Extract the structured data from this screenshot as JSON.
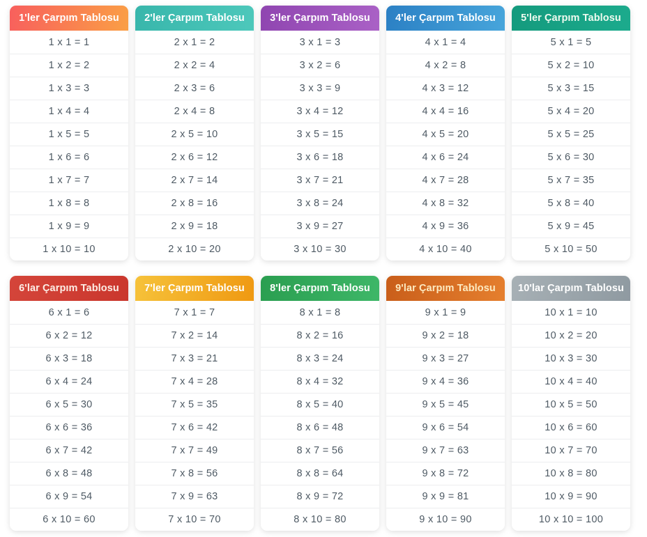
{
  "page": {
    "background": "#ffffff",
    "cell_text_color": "#4e5a64",
    "row_separator_color": "#ecedef"
  },
  "tables": [
    {
      "title": "1'ler Çarpım Tablosu",
      "header_gradient_from": "#f85f5d",
      "header_gradient_to": "#fa9f45",
      "header_text_color": "#ffffff",
      "rows": [
        "1 x 1 = 1",
        "1 x 2 = 2",
        "1 x 3 = 3",
        "1 x 4 = 4",
        "1 x 5 = 5",
        "1 x 6 = 6",
        "1 x 7 = 7",
        "1 x 8 = 8",
        "1 x 9 = 9",
        "1 x 10 = 10"
      ]
    },
    {
      "title": "2'ler Çarpım Tablosu",
      "header_gradient_from": "#38b6ab",
      "header_gradient_to": "#4dc8bb",
      "header_text_color": "#ffffff",
      "rows": [
        "2 x 1 = 2",
        "2 x 2 = 4",
        "2 x 3 = 6",
        "2 x 4 = 8",
        "2 x 5 = 10",
        "2 x 6 = 12",
        "2 x 7 = 14",
        "2 x 8 = 16",
        "2 x 9 = 18",
        "2 x 10 = 20"
      ]
    },
    {
      "title": "3'ler Çarpım Tablosu",
      "header_gradient_from": "#8f45b0",
      "header_gradient_to": "#aa61c6",
      "header_text_color": "#ffffff",
      "rows": [
        "3 x 1 = 3",
        "3 x 2 = 6",
        "3 x 3 = 9",
        "3 x 4 = 12",
        "3 x 5 = 15",
        "3 x 6 = 18",
        "3 x 7 = 21",
        "3 x 8 = 24",
        "3 x 9 = 27",
        "3 x 10 = 30"
      ]
    },
    {
      "title": "4'ler Çarpım Tablosu",
      "header_gradient_from": "#2b80c4",
      "header_gradient_to": "#47a5db",
      "header_text_color": "#ffffff",
      "rows": [
        "4 x 1 = 4",
        "4 x 2 = 8",
        "4 x 3 = 12",
        "4 x 4 = 16",
        "4 x 5 = 20",
        "4 x 6 = 24",
        "4 x 7 = 28",
        "4 x 8 = 32",
        "4 x 9 = 36",
        "4 x 10 = 40"
      ]
    },
    {
      "title": "5'ler Çarpım Tablosu",
      "header_gradient_from": "#149a7d",
      "header_gradient_to": "#1cab8d",
      "header_text_color": "#effbf0",
      "rows": [
        "5 x 1 = 5",
        "5 x 2 = 10",
        "5 x 3 = 15",
        "5 x 4 = 20",
        "5 x 5 = 25",
        "5 x 6 = 30",
        "5 x 7 = 35",
        "5 x 8 = 40",
        "5 x 9 = 45",
        "5 x 10 = 50"
      ]
    },
    {
      "title": "6'lar Çarpım Tablosu",
      "header_gradient_from": "#d4453a",
      "header_gradient_to": "#ca372d",
      "header_text_color": "#fdeee6",
      "rows": [
        "6 x 1 = 6",
        "6 x 2 = 12",
        "6 x 3 = 18",
        "6 x 4 = 24",
        "6 x 5 = 30",
        "6 x 6 = 36",
        "6 x 7 = 42",
        "6 x 8 = 48",
        "6 x 9 = 54",
        "6 x 10 = 60"
      ]
    },
    {
      "title": "7'ler Çarpım Tablosu",
      "header_gradient_from": "#f6c23a",
      "header_gradient_to": "#ef9912",
      "header_text_color": "#ffffff",
      "rows": [
        "7 x 1 = 7",
        "7 x 2 = 14",
        "7 x 3 = 21",
        "7 x 4 = 28",
        "7 x 5 = 35",
        "7 x 6 = 42",
        "7 x 7 = 49",
        "7 x 8 = 56",
        "7 x 9 = 63",
        "7 x 10 = 70"
      ]
    },
    {
      "title": "8'ler Çarpım Tablosu",
      "header_gradient_from": "#2a9e50",
      "header_gradient_to": "#3eb768",
      "header_text_color": "#ffffff",
      "rows": [
        "8 x 1 = 8",
        "8 x 2 = 16",
        "8 x 3 = 24",
        "8 x 4 = 32",
        "8 x 5 = 40",
        "8 x 6 = 48",
        "8 x 7 = 56",
        "8 x 8 = 64",
        "8 x 9 = 72",
        "8 x 10 = 80"
      ]
    },
    {
      "title": "9'lar Çarpım Tablosu",
      "header_gradient_from": "#c95e1a",
      "header_gradient_to": "#e57f2e",
      "header_text_color": "#fdeac1",
      "rows": [
        "9 x 1 = 9",
        "9 x 2 = 18",
        "9 x 3 = 27",
        "9 x 4 = 36",
        "9 x 5 = 45",
        "9 x 6 = 54",
        "9 x 7 = 63",
        "9 x 8 = 72",
        "9 x 9 = 81",
        "9 x 10 = 90"
      ]
    },
    {
      "title": "10'lar Çarpım Tablosu",
      "header_gradient_from": "#a7b0b5",
      "header_gradient_to": "#8f9aa1",
      "header_text_color": "#ffffff",
      "rows": [
        "10 x 1 = 10",
        "10 x 2 = 20",
        "10 x 3 = 30",
        "10 x 4 = 40",
        "10 x 5 = 50",
        "10 x 6 = 60",
        "10 x 7 = 70",
        "10 x 8 = 80",
        "10 x 9 = 90",
        "10 x 10 = 100"
      ]
    }
  ]
}
